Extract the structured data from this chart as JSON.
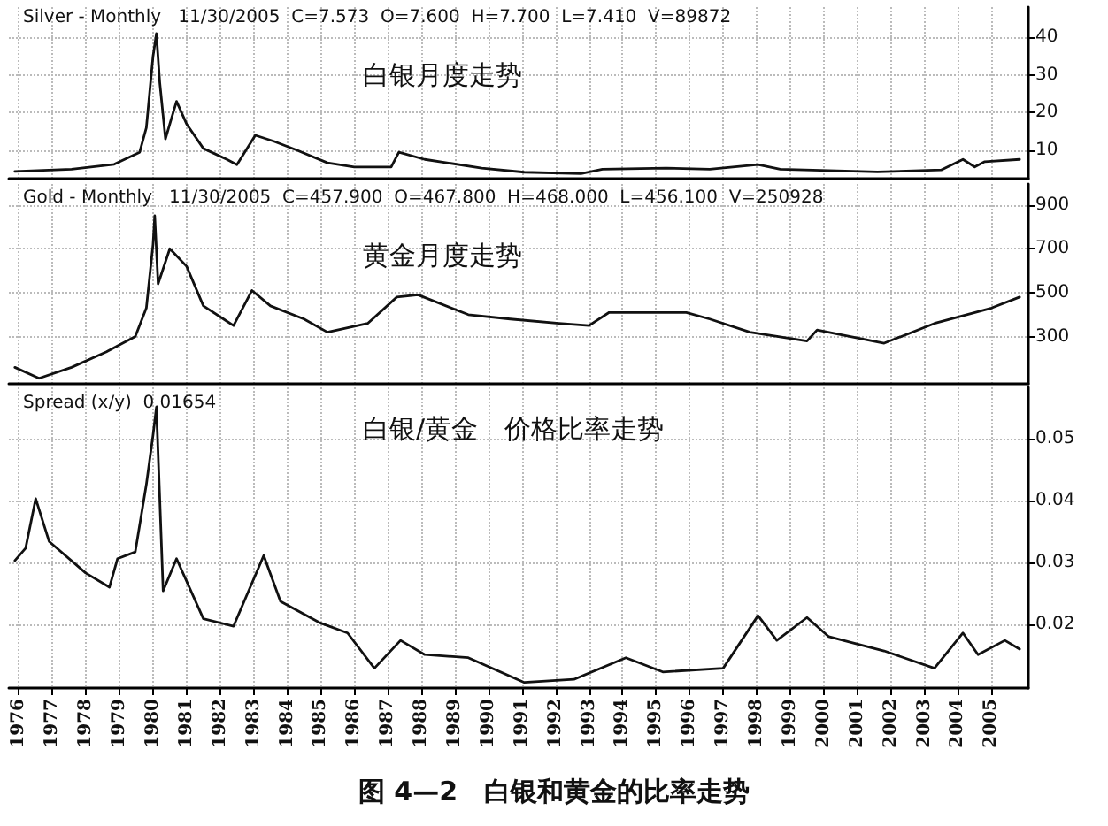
{
  "chart_data": [
    {
      "type": "line",
      "title": "白银月度走势",
      "subtitle": "Silver - Monthly   11/30/2005  C=7.573  O=7.600  H=7.700  L=7.410  V=89872",
      "x": [
        1975.88,
        1977.57,
        1978.84,
        1979.6,
        1979.8,
        1980.0,
        1980.1,
        1980.2,
        1980.37,
        1980.5,
        1980.7,
        1981.0,
        1981.5,
        1982.2,
        1982.5,
        1983.05,
        1983.6,
        1984.3,
        1985.2,
        1986.0,
        1987.1,
        1987.33,
        1988.1,
        1989.8,
        1991.07,
        1992.76,
        1993.4,
        1995.3,
        1996.6,
        1998.04,
        1998.7,
        2001.6,
        2003.5,
        2004.15,
        2004.5,
        2004.8,
        2005.84
      ],
      "series": [
        {
          "color": "#111111",
          "values": [
            4.4,
            5,
            6.3,
            9.5,
            16,
            35,
            41,
            28,
            13,
            17,
            23,
            17,
            10.5,
            7.6,
            6.2,
            14,
            12.4,
            10,
            6.7,
            5.6,
            5.6,
            9.5,
            7.6,
            5.3,
            4.2,
            3.8,
            5,
            5.3,
            5,
            6.2,
            5,
            4.3,
            4.8,
            7.6,
            5.6,
            7,
            7.6
          ]
        }
      ],
      "xlim": [
        1975.7,
        2006.1
      ],
      "xticks": [
        1976,
        1977,
        1978,
        1979,
        1980,
        1981,
        1982,
        1983,
        1984,
        1985,
        1986,
        1987,
        1988,
        1989,
        1990,
        1991,
        1992,
        1993,
        1994,
        1995,
        1996,
        1997,
        1998,
        1999,
        2000,
        2001,
        2002,
        2003,
        2004,
        2005
      ],
      "ylim": [
        2.5,
        48
      ],
      "yticks": [
        10,
        20,
        30,
        40
      ],
      "tick_labels": "y",
      "grid": true,
      "marker": "none",
      "line_style": "solid"
    },
    {
      "type": "line",
      "title": "黄金月度走势",
      "subtitle": "Gold - Monthly   11/30/2005  C=457.900  O=467.800  H=468.000  L=456.100  V=250928",
      "x": [
        1975.88,
        1976.6,
        1977.57,
        1978.6,
        1979.47,
        1979.8,
        1980.0,
        1980.05,
        1980.15,
        1980.5,
        1981.0,
        1981.5,
        1982.4,
        1982.95,
        1983.5,
        1984.5,
        1985.2,
        1986.4,
        1987.27,
        1987.9,
        1989.4,
        1990.65,
        1992.1,
        1993.0,
        1993.6,
        1995.9,
        1996.6,
        1997.8,
        1999.5,
        1999.8,
        2001.8,
        2003.3,
        2005.0,
        2005.84
      ],
      "series": [
        {
          "color": "#111111",
          "values": [
            160,
            110,
            160,
            230,
            300,
            430,
            720,
            850,
            540,
            700,
            620,
            440,
            350,
            510,
            440,
            380,
            320,
            360,
            480,
            490,
            400,
            380,
            360,
            350,
            410,
            410,
            380,
            320,
            280,
            330,
            270,
            360,
            430,
            480
          ]
        }
      ],
      "xlim": [
        1975.7,
        2006.1
      ],
      "xticks": [
        1976,
        1977,
        1978,
        1979,
        1980,
        1981,
        1982,
        1983,
        1984,
        1985,
        1986,
        1987,
        1988,
        1989,
        1990,
        1991,
        1992,
        1993,
        1994,
        1995,
        1996,
        1997,
        1998,
        1999,
        2000,
        2001,
        2002,
        2003,
        2004,
        2005
      ],
      "ylim": [
        85,
        995
      ],
      "yticks": [
        300,
        500,
        700,
        900
      ],
      "tick_labels": "y",
      "grid": true,
      "marker": "none",
      "line_style": "solid"
    },
    {
      "type": "line",
      "title": "白银/黄金　价格比率走势",
      "subtitle": "Spread (x/y)  0.01654",
      "annotations": [
        "图 4—2　白银和黄金的比率走势"
      ],
      "x": [
        1975.88,
        1976.2,
        1976.5,
        1976.9,
        1977.99,
        1978.7,
        1978.94,
        1979.47,
        1979.8,
        1980.0,
        1980.1,
        1980.3,
        1980.7,
        1981.5,
        1982.4,
        1983.3,
        1983.8,
        1984.95,
        1985.8,
        1986.6,
        1987.38,
        1988.1,
        1989.4,
        1991.07,
        1992.55,
        1994.1,
        1995.2,
        1997.0,
        1998.04,
        1998.6,
        1999.5,
        2000.15,
        2001.8,
        2003.3,
        2004.15,
        2004.6,
        2005.4,
        2005.84
      ],
      "series": [
        {
          "color": "#111111",
          "values": [
            0.0303,
            0.0323,
            0.0403,
            0.0334,
            0.0283,
            0.026,
            0.0306,
            0.0317,
            0.0426,
            0.0506,
            0.0551,
            0.0254,
            0.0306,
            0.0209,
            0.0197,
            0.0311,
            0.0237,
            0.0203,
            0.0186,
            0.0129,
            0.0174,
            0.0151,
            0.0146,
            0.0106,
            0.0111,
            0.0146,
            0.0123,
            0.0129,
            0.0214,
            0.0174,
            0.0211,
            0.018,
            0.0157,
            0.0129,
            0.0186,
            0.0151,
            0.0174,
            0.016
          ]
        }
      ],
      "xlim": [
        1975.7,
        2006.1
      ],
      "xticks": [
        1976,
        1977,
        1978,
        1979,
        1980,
        1981,
        1982,
        1983,
        1984,
        1985,
        1986,
        1987,
        1988,
        1989,
        1990,
        1991,
        1992,
        1993,
        1994,
        1995,
        1996,
        1997,
        1998,
        1999,
        2000,
        2001,
        2002,
        2003,
        2004,
        2005
      ],
      "ylim": [
        0.0097,
        0.0583
      ],
      "yticks": [
        0.02,
        0.03,
        0.04,
        0.05
      ],
      "grid": true,
      "marker": "none",
      "line_style": "solid"
    }
  ]
}
